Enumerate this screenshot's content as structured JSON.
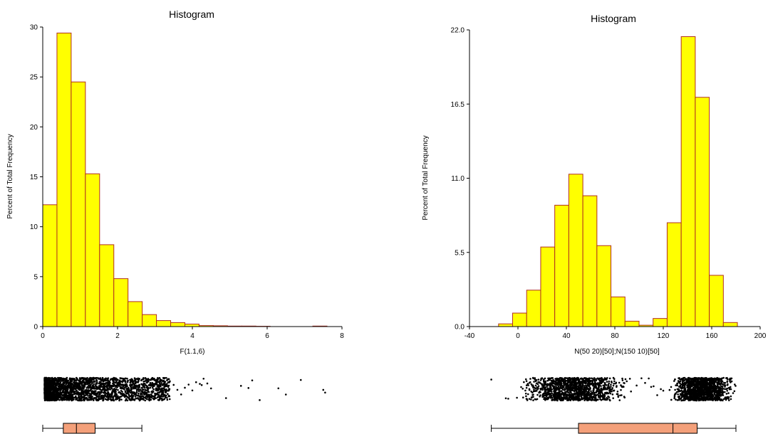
{
  "chart_data": [
    {
      "type": "bar",
      "title": "Histogram",
      "xlabel": "F(1.1,6)",
      "ylabel": "Percent of Total Frequency",
      "xlim": [
        0,
        8
      ],
      "ylim": [
        0,
        30
      ],
      "xticks": [
        "0",
        "2",
        "4",
        "6",
        "8"
      ],
      "yticks": [
        "0",
        "5",
        "10",
        "15",
        "20",
        "25",
        "30"
      ],
      "bin_width": 0.38,
      "bin_start": 0,
      "values": [
        12.2,
        29.4,
        24.5,
        15.3,
        8.2,
        4.8,
        2.5,
        1.2,
        0.6,
        0.4,
        0.25,
        0.1,
        0.08,
        0.05,
        0.05,
        0.03,
        0.0,
        0.0,
        0.0,
        0.05
      ],
      "bar_color": "#ffff00",
      "edge_color": "#b03020",
      "grid": false,
      "dot_plot": {
        "dense_range": [
          0.05,
          3.4
        ],
        "outliers": [
          3.5,
          3.6,
          3.7,
          3.8,
          3.9,
          4.0,
          4.1,
          4.2,
          4.25,
          4.3,
          4.4,
          4.5,
          4.9,
          5.3,
          5.5,
          5.6,
          5.8,
          6.3,
          6.5,
          6.9,
          7.5,
          7.55
        ]
      },
      "box_plot": {
        "whisker_low": 0.0,
        "q1": 0.55,
        "median": 0.9,
        "q3": 1.4,
        "whisker_high": 2.65
      },
      "box_color": "#f4a07a"
    },
    {
      "type": "bar",
      "title": "Histogram",
      "xlabel": "N(50 20)[50];N(150 10)[50]",
      "ylabel": "Percent of Total Frequency",
      "xlim": [
        -40,
        200
      ],
      "ylim": [
        0,
        22
      ],
      "xticks": [
        "-40",
        "0",
        "40",
        "80",
        "120",
        "160",
        "200"
      ],
      "yticks": [
        "0.0",
        "5.5",
        "11.0",
        "16.5",
        "22.0"
      ],
      "bin_width": 11.6,
      "bin_start": -16,
      "values": [
        0.2,
        1.0,
        2.7,
        5.9,
        9.0,
        11.3,
        9.7,
        6.0,
        2.2,
        0.4,
        0.1,
        0.6,
        7.7,
        21.5,
        17.0,
        3.8,
        0.3
      ],
      "bar_color": "#ffff00",
      "edge_color": "#b03020",
      "grid": false,
      "dot_plot": {
        "clusters": [
          [
            -5,
            98
          ],
          [
            122,
            183
          ]
        ],
        "outliers": [
          -22,
          -10,
          -8,
          98,
          102,
          105,
          108,
          110,
          112,
          115,
          118,
          120
        ]
      },
      "box_plot": {
        "whisker_low": -22,
        "q1": 50,
        "median": 128,
        "q3": 148,
        "whisker_high": 180
      },
      "box_color": "#f4a07a"
    }
  ]
}
